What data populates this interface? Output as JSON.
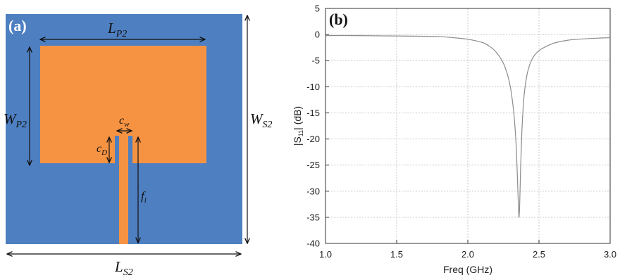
{
  "panel_a": {
    "label": "(a)",
    "colors": {
      "substrate": "#4e7fc1",
      "patch": "#f59343",
      "arrow": "#111111"
    },
    "dims": {
      "patch_length": {
        "main": "L",
        "sub": "P2"
      },
      "patch_width": {
        "main": "W",
        "sub": "P2"
      },
      "substrate_width": {
        "main": "W",
        "sub": "S2"
      },
      "substrate_length": {
        "main": "L",
        "sub": "S2"
      },
      "slot_width": {
        "main": "c",
        "sub": "w"
      },
      "slot_depth": {
        "main": "c",
        "sub": "D"
      },
      "feed_length": {
        "main": "f",
        "sub": "l"
      }
    }
  },
  "panel_b": {
    "label": "(b)"
  },
  "chart_data": {
    "type": "line",
    "title": "",
    "xlabel": "Freq (GHz)",
    "ylabel_parts": {
      "pre": "|S",
      "sub": "11",
      "post": "| (dB)"
    },
    "xlim": [
      1.0,
      3.0
    ],
    "ylim": [
      -40,
      5
    ],
    "x_ticks": [
      1.0,
      1.5,
      2.0,
      2.5,
      3.0
    ],
    "x_tick_labels": [
      "1.0",
      "1.5",
      "2.0",
      "2.5",
      "3.0"
    ],
    "y_ticks": [
      5,
      0,
      -5,
      -10,
      -15,
      -20,
      -25,
      -30,
      -35,
      -40
    ],
    "y_tick_labels": [
      "5",
      "0",
      "-5",
      "-10",
      "-15",
      "-20",
      "-25",
      "-30",
      "-35",
      "-40"
    ],
    "grid": true,
    "line_color": "#8c8c8c",
    "series": [
      {
        "x": [
          1.0,
          1.2,
          1.4,
          1.6,
          1.8,
          1.9,
          2.0,
          2.1,
          2.15,
          2.2,
          2.25,
          2.28,
          2.3,
          2.32,
          2.33,
          2.34,
          2.35,
          2.355,
          2.36,
          2.365,
          2.37,
          2.38,
          2.39,
          2.4,
          2.42,
          2.45,
          2.5,
          2.6,
          2.7,
          2.8,
          2.9,
          3.0
        ],
        "y": [
          -0.2,
          -0.2,
          -0.25,
          -0.3,
          -0.4,
          -0.6,
          -0.9,
          -1.5,
          -2.2,
          -3.4,
          -5.5,
          -7.8,
          -10.2,
          -14.2,
          -17.2,
          -21.5,
          -28.5,
          -32.5,
          -35.0,
          -32.0,
          -26.5,
          -18.5,
          -13.5,
          -10.5,
          -7.2,
          -4.8,
          -3.1,
          -1.7,
          -1.1,
          -0.85,
          -0.7,
          -0.6
        ]
      }
    ]
  }
}
